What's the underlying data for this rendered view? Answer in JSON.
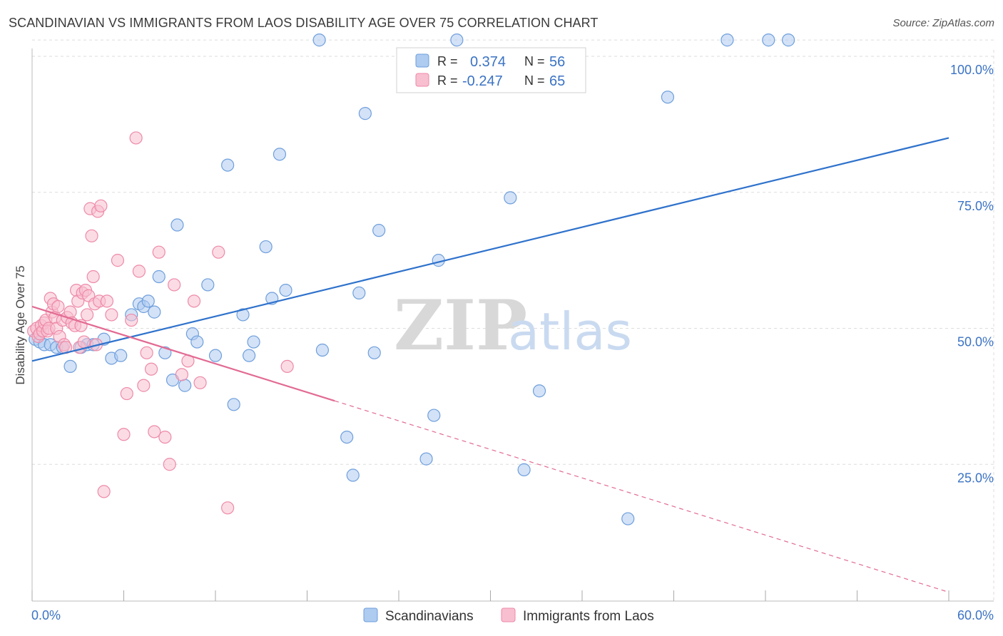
{
  "title": "SCANDINAVIAN VS IMMIGRANTS FROM LAOS DISABILITY AGE OVER 75 CORRELATION CHART",
  "source": "Source: ZipAtlas.com",
  "watermark": {
    "zip": "ZIP",
    "atlas": "atlas"
  },
  "legend_box": {
    "rows": [
      {
        "r_label": "R =",
        "r_value": "0.374",
        "n_label": "N =",
        "n_value": "56"
      },
      {
        "r_label": "R =",
        "r_value": "-0.247",
        "n_label": "N =",
        "n_value": "65"
      }
    ]
  },
  "bottom_legend": [
    "Scandinavians",
    "Immigrants from Laos"
  ],
  "colors": {
    "blue_fill": "#aecbf0",
    "blue_stroke": "#6f9fdc",
    "blue_line": "#2f72cc",
    "pink_fill": "#f8bfd0",
    "pink_stroke": "#ee8aa8",
    "pink_line": "#e26a93",
    "grid": "#dddddd",
    "tick_text": "#3b73c4"
  },
  "chart_data": {
    "type": "scatter",
    "title": "SCANDINAVIAN VS IMMIGRANTS FROM LAOS DISABILITY AGE OVER 75 CORRELATION CHART",
    "xlabel": "",
    "ylabel": "Disability Age Over 75",
    "xlim": [
      0,
      60
    ],
    "ylim": [
      0,
      105
    ],
    "x_tick_labels": [
      "0.0%",
      "60.0%"
    ],
    "y_ticks": [
      25,
      50,
      75,
      100
    ],
    "y_tick_labels": [
      "25.0%",
      "50.0%",
      "75.0%",
      "100.0%"
    ],
    "grid": true,
    "legend_position": "top-center",
    "series": [
      {
        "name": "Scandinavians",
        "r": 0.374,
        "n": 56,
        "trend": {
          "x": [
            0,
            60
          ],
          "y": [
            44.0,
            85.0
          ],
          "dashed_from": null
        },
        "points": [
          [
            0.2,
            48.0
          ],
          [
            0.5,
            47.5
          ],
          [
            0.8,
            47.0
          ],
          [
            1.2,
            47.0
          ],
          [
            1.6,
            46.5
          ],
          [
            2.0,
            46.5
          ],
          [
            2.5,
            43.0
          ],
          [
            3.2,
            46.5
          ],
          [
            3.6,
            47.0
          ],
          [
            4.0,
            47.0
          ],
          [
            4.7,
            48.0
          ],
          [
            5.2,
            44.5
          ],
          [
            5.8,
            45.0
          ],
          [
            6.5,
            52.5
          ],
          [
            7.0,
            54.5
          ],
          [
            7.3,
            54.0
          ],
          [
            7.6,
            55.0
          ],
          [
            8.0,
            53.0
          ],
          [
            8.3,
            59.5
          ],
          [
            8.7,
            45.5
          ],
          [
            9.2,
            40.5
          ],
          [
            9.5,
            69.0
          ],
          [
            10.0,
            39.5
          ],
          [
            10.5,
            49.0
          ],
          [
            10.8,
            47.5
          ],
          [
            11.5,
            58.0
          ],
          [
            12.0,
            45.0
          ],
          [
            12.8,
            80.0
          ],
          [
            13.2,
            36.0
          ],
          [
            13.8,
            52.5
          ],
          [
            14.2,
            45.0
          ],
          [
            14.5,
            47.5
          ],
          [
            15.3,
            65.0
          ],
          [
            15.7,
            55.5
          ],
          [
            16.2,
            82.0
          ],
          [
            16.6,
            57.0
          ],
          [
            18.8,
            103.0
          ],
          [
            19.0,
            46.0
          ],
          [
            20.6,
            30.0
          ],
          [
            21.0,
            23.0
          ],
          [
            21.4,
            56.5
          ],
          [
            21.8,
            89.5
          ],
          [
            22.4,
            45.5
          ],
          [
            22.7,
            68.0
          ],
          [
            25.8,
            26.0
          ],
          [
            26.3,
            34.0
          ],
          [
            26.6,
            62.5
          ],
          [
            27.8,
            103.0
          ],
          [
            31.3,
            74.0
          ],
          [
            32.2,
            24.0
          ],
          [
            33.2,
            38.5
          ],
          [
            39.0,
            15.0
          ],
          [
            41.6,
            92.5
          ],
          [
            45.5,
            103.0
          ],
          [
            48.2,
            103.0
          ],
          [
            49.5,
            103.0
          ]
        ]
      },
      {
        "name": "Immigrants from Laos",
        "r": -0.247,
        "n": 65,
        "trend": {
          "x": [
            0,
            60
          ],
          "y": [
            54.0,
            1.5
          ],
          "dashed_from": 19.8
        },
        "points": [
          [
            0.1,
            49.5
          ],
          [
            0.3,
            50.0
          ],
          [
            0.4,
            48.5
          ],
          [
            0.5,
            49.0
          ],
          [
            0.6,
            50.5
          ],
          [
            0.7,
            49.5
          ],
          [
            0.8,
            51.0
          ],
          [
            0.9,
            51.5
          ],
          [
            1.0,
            49.5
          ],
          [
            1.1,
            50.0
          ],
          [
            1.2,
            55.5
          ],
          [
            1.3,
            53.0
          ],
          [
            1.4,
            54.5
          ],
          [
            1.5,
            52.0
          ],
          [
            1.6,
            50.0
          ],
          [
            1.7,
            54.0
          ],
          [
            1.8,
            48.5
          ],
          [
            2.0,
            51.5
          ],
          [
            2.1,
            47.0
          ],
          [
            2.2,
            46.5
          ],
          [
            2.3,
            52.0
          ],
          [
            2.5,
            53.0
          ],
          [
            2.6,
            51.0
          ],
          [
            2.8,
            50.5
          ],
          [
            2.9,
            57.0
          ],
          [
            3.0,
            55.0
          ],
          [
            3.1,
            46.5
          ],
          [
            3.2,
            50.5
          ],
          [
            3.3,
            56.5
          ],
          [
            3.4,
            47.5
          ],
          [
            3.5,
            57.0
          ],
          [
            3.6,
            52.5
          ],
          [
            3.7,
            56.0
          ],
          [
            3.8,
            72.0
          ],
          [
            3.9,
            67.0
          ],
          [
            4.0,
            59.5
          ],
          [
            4.1,
            54.5
          ],
          [
            4.2,
            47.0
          ],
          [
            4.3,
            71.5
          ],
          [
            4.4,
            55.0
          ],
          [
            4.5,
            72.5
          ],
          [
            4.7,
            20.0
          ],
          [
            4.9,
            55.0
          ],
          [
            5.2,
            52.5
          ],
          [
            5.6,
            62.5
          ],
          [
            6.0,
            30.5
          ],
          [
            6.2,
            38.0
          ],
          [
            6.5,
            51.5
          ],
          [
            6.8,
            85.0
          ],
          [
            7.0,
            60.5
          ],
          [
            7.3,
            39.5
          ],
          [
            7.5,
            45.5
          ],
          [
            7.8,
            42.5
          ],
          [
            8.0,
            31.0
          ],
          [
            8.3,
            64.0
          ],
          [
            8.7,
            30.0
          ],
          [
            9.0,
            25.0
          ],
          [
            9.3,
            58.0
          ],
          [
            9.8,
            41.5
          ],
          [
            10.2,
            44.0
          ],
          [
            10.6,
            55.0
          ],
          [
            11.0,
            40.0
          ],
          [
            12.2,
            64.0
          ],
          [
            12.8,
            17.0
          ],
          [
            16.7,
            43.0
          ]
        ]
      }
    ]
  }
}
